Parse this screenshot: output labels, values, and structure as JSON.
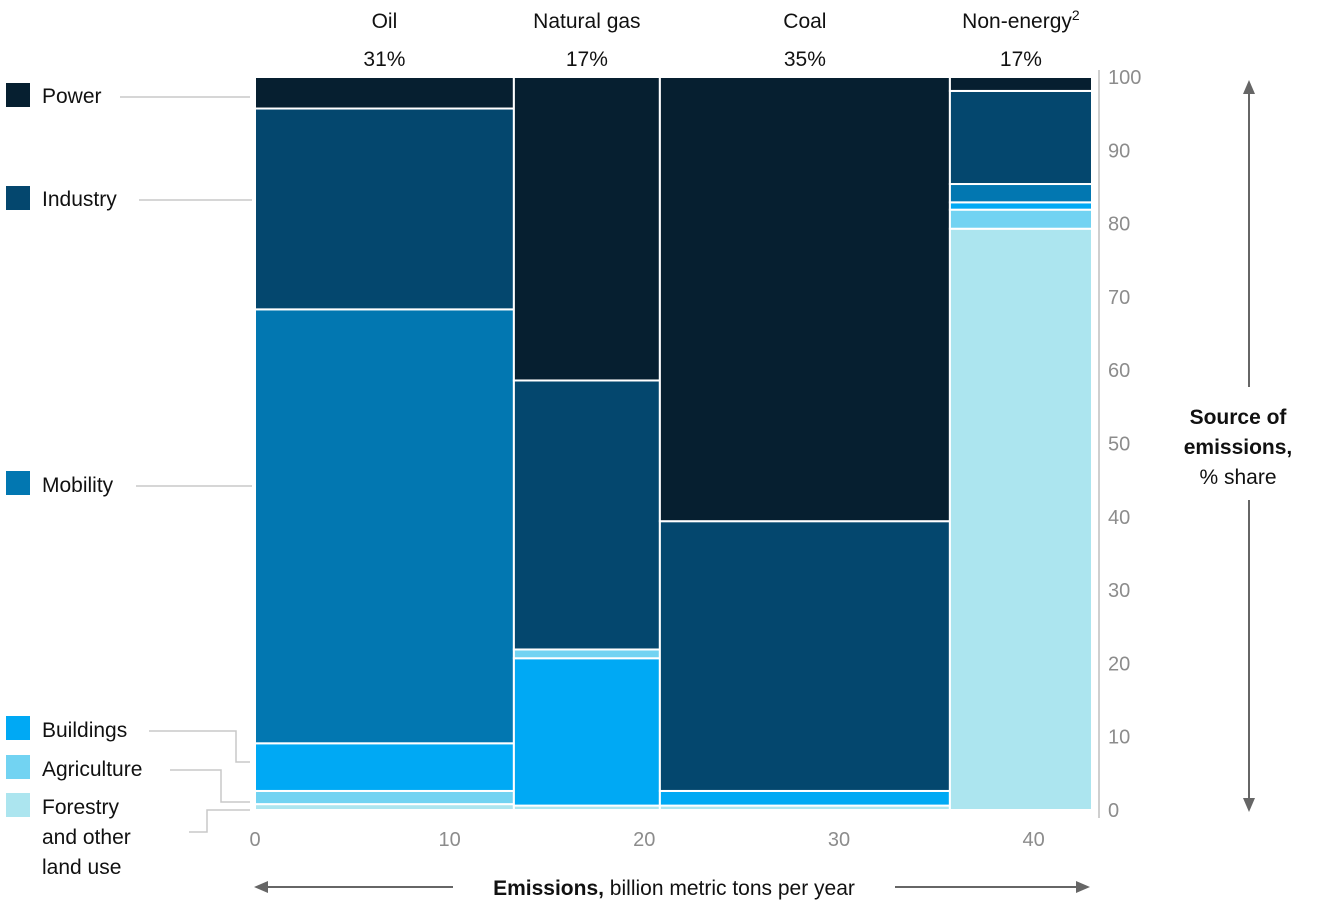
{
  "chart_data": {
    "type": "mekko",
    "xlabel_bold": "Emissions,",
    "xlabel_rest": " billion metric tons per year",
    "ylabel_line1": "Source of",
    "ylabel_line2": "emissions,",
    "ylabel_line3": "% share",
    "x_ticks": [
      0,
      10,
      20,
      30,
      40
    ],
    "y_ticks": [
      0,
      10,
      20,
      30,
      40,
      50,
      60,
      70,
      80,
      90,
      100
    ],
    "xlim": [
      0,
      43
    ],
    "ylim": [
      0,
      100
    ],
    "colors": {
      "Power": "#061f30",
      "Industry": "#04476e",
      "Mobility": "#0277b1",
      "Buildings": "#00a9f4",
      "Agriculture": "#72d3f2",
      "Forestry and other land use": "#ace5ef"
    },
    "legend": [
      {
        "key": "Power",
        "lines": [
          "Power"
        ]
      },
      {
        "key": "Industry",
        "lines": [
          "Industry"
        ]
      },
      {
        "key": "Mobility",
        "lines": [
          "Mobility"
        ]
      },
      {
        "key": "Buildings",
        "lines": [
          "Buildings"
        ]
      },
      {
        "key": "Agriculture",
        "lines": [
          "Agriculture"
        ]
      },
      {
        "key": "Forestry and other land use",
        "lines": [
          "Forestry",
          "and other",
          "land use"
        ]
      }
    ],
    "columns": [
      {
        "name": "Oil",
        "name_sup": "",
        "share": "31%",
        "x_start": 0,
        "x_end": 13.3,
        "segments": [
          {
            "sector": "Forestry and other land use",
            "from": 0,
            "to": 0.8
          },
          {
            "sector": "Agriculture",
            "from": 0.8,
            "to": 2.6
          },
          {
            "sector": "Buildings",
            "from": 2.6,
            "to": 9.1
          },
          {
            "sector": "Mobility",
            "from": 9.1,
            "to": 68.3
          },
          {
            "sector": "Industry",
            "from": 68.3,
            "to": 95.7
          },
          {
            "sector": "Power",
            "from": 95.7,
            "to": 100
          }
        ]
      },
      {
        "name": "Natural gas",
        "name_sup": "",
        "share": "17%",
        "x_start": 13.3,
        "x_end": 20.8,
        "segments": [
          {
            "sector": "Forestry and other land use",
            "from": 0,
            "to": 0.6
          },
          {
            "sector": "Buildings",
            "from": 0.6,
            "to": 20.7
          },
          {
            "sector": "Agriculture",
            "from": 20.7,
            "to": 21.9
          },
          {
            "sector": "Industry",
            "from": 21.9,
            "to": 58.6
          },
          {
            "sector": "Power",
            "from": 58.6,
            "to": 100
          }
        ]
      },
      {
        "name": "Coal",
        "name_sup": "",
        "share": "35%",
        "x_start": 20.8,
        "x_end": 35.7,
        "segments": [
          {
            "sector": "Forestry and other land use",
            "from": 0,
            "to": 0.6
          },
          {
            "sector": "Buildings",
            "from": 0.6,
            "to": 2.6
          },
          {
            "sector": "Industry",
            "from": 2.6,
            "to": 39.4
          },
          {
            "sector": "Power",
            "from": 39.4,
            "to": 100
          }
        ]
      },
      {
        "name": "Non-energy",
        "name_sup": "2",
        "share": "17%",
        "x_start": 35.7,
        "x_end": 43.0,
        "segments": [
          {
            "sector": "Forestry and other land use",
            "from": 0,
            "to": 79.3
          },
          {
            "sector": "Agriculture",
            "from": 79.3,
            "to": 81.9
          },
          {
            "sector": "Buildings",
            "from": 81.9,
            "to": 82.9
          },
          {
            "sector": "Mobility",
            "from": 82.9,
            "to": 85.4
          },
          {
            "sector": "Industry",
            "from": 85.4,
            "to": 98.1
          },
          {
            "sector": "Power",
            "from": 98.1,
            "to": 100
          }
        ]
      }
    ]
  }
}
